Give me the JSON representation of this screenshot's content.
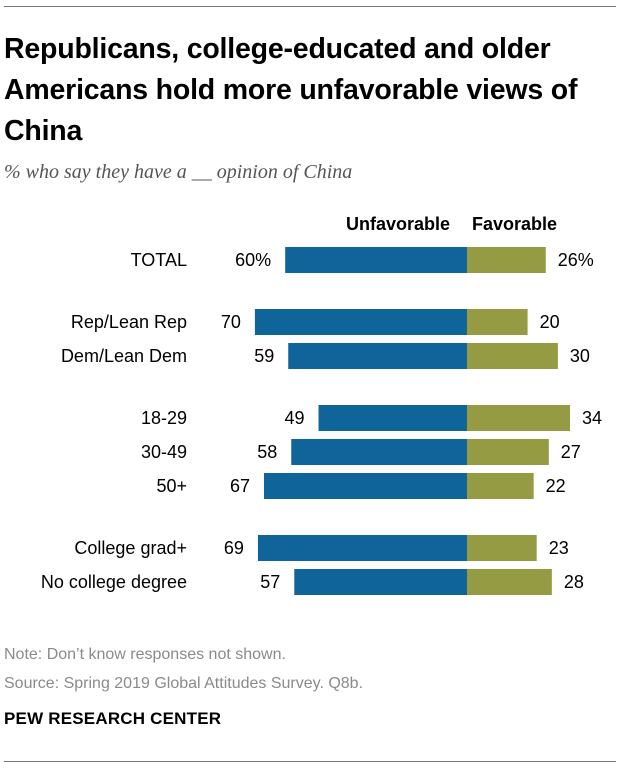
{
  "title": "Republicans, college-educated and older Americans hold more unfavorable views of China",
  "subtitle": "% who say they have a __ opinion of China",
  "note": "Note: Don’t know responses not shown.",
  "source": "Source: Spring 2019 Global Attitudes Survey. Q8b.",
  "brand": "PEW RESEARCH CENTER",
  "colors": {
    "unfavorable": "#0F6499",
    "favorable": "#949B42"
  },
  "chart_data": {
    "type": "bar",
    "orientation": "diverging-horizontal",
    "categories": [
      "TOTAL",
      "Rep/Lean Rep",
      "Dem/Lean Dem",
      "18-29",
      "30-49",
      "50+",
      "College grad+",
      "No college degree"
    ],
    "groups": [
      [
        0
      ],
      [
        1,
        2
      ],
      [
        3,
        4,
        5
      ],
      [
        6,
        7
      ]
    ],
    "series": [
      {
        "name": "Unfavorable",
        "values": [
          60,
          70,
          59,
          49,
          58,
          67,
          69,
          57
        ]
      },
      {
        "name": "Favorable",
        "values": [
          26,
          20,
          30,
          34,
          27,
          22,
          23,
          28
        ]
      }
    ],
    "value_labels": {
      "Unfavorable": [
        "60%",
        "70",
        "59",
        "49",
        "58",
        "67",
        "69",
        "57"
      ],
      "Favorable": [
        "26%",
        "20",
        "30",
        "34",
        "27",
        "22",
        "23",
        "28"
      ]
    },
    "unit": "%",
    "grid": false,
    "legend": "top-center"
  }
}
